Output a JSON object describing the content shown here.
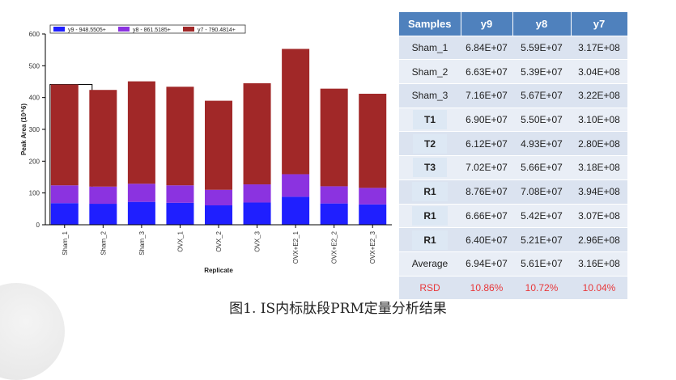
{
  "chart_data": {
    "type": "bar",
    "stacked": true,
    "categories": [
      "Sham_1",
      "Sham_2",
      "Sham_3",
      "OVX_1",
      "OVX_2",
      "OVX_3",
      "OVX+E2_1",
      "OVX+E2_2",
      "OVX+E2_3"
    ],
    "series": [
      {
        "name": "y9 - 948.5505+",
        "color": "#1f1fff",
        "values": [
          68,
          66,
          72,
          69,
          61,
          70,
          88,
          67,
          64
        ]
      },
      {
        "name": "y8 - 861.5185+",
        "color": "#8b33e0",
        "values": [
          56,
          54,
          57,
          55,
          49,
          57,
          71,
          54,
          52
        ]
      },
      {
        "name": "y7 - 790.4814+",
        "color": "#a12828",
        "values": [
          317,
          304,
          322,
          310,
          280,
          318,
          394,
          307,
          296
        ]
      }
    ],
    "xlabel": "Replicate",
    "ylabel": "Peak Area (10^6)",
    "yticks": [
      0,
      100,
      200,
      300,
      400,
      500,
      600
    ],
    "ylim": [
      0,
      600
    ],
    "legend_position": "top",
    "highlighted_category": "Sham_1"
  },
  "table": {
    "headers": [
      "Samples",
      "y9",
      "y8",
      "y7"
    ],
    "rows": [
      {
        "sample": "Sham_1",
        "y9": "6.84E+07",
        "y8": "5.59E+07",
        "y7": "3.17E+08",
        "boxed": false
      },
      {
        "sample": "Sham_2",
        "y9": "6.63E+07",
        "y8": "5.39E+07",
        "y7": "3.04E+08",
        "boxed": false
      },
      {
        "sample": "Sham_3",
        "y9": "7.16E+07",
        "y8": "5.67E+07",
        "y7": "3.22E+08",
        "boxed": false
      },
      {
        "sample": "T1",
        "y9": "6.90E+07",
        "y8": "5.50E+07",
        "y7": "3.10E+08",
        "boxed": true
      },
      {
        "sample": "T2",
        "y9": "6.12E+07",
        "y8": "4.93E+07",
        "y7": "2.80E+08",
        "boxed": true
      },
      {
        "sample": "T3",
        "y9": "7.02E+07",
        "y8": "5.66E+07",
        "y7": "3.18E+08",
        "boxed": true
      },
      {
        "sample": "R1",
        "y9": "8.76E+07",
        "y8": "7.08E+07",
        "y7": "3.94E+08",
        "boxed": true
      },
      {
        "sample": "R1",
        "y9": "6.66E+07",
        "y8": "5.42E+07",
        "y7": "3.07E+08",
        "boxed": true
      },
      {
        "sample": "R1",
        "y9": "6.40E+07",
        "y8": "5.21E+07",
        "y7": "2.96E+08",
        "boxed": true
      },
      {
        "sample": "Average",
        "y9": "6.94E+07",
        "y8": "5.61E+07",
        "y7": "3.16E+08",
        "boxed": false
      },
      {
        "sample": "RSD",
        "y9": "10.86%",
        "y8": "10.72%",
        "y7": "10.04%",
        "boxed": false,
        "rsd": true
      }
    ]
  },
  "caption": "图1. IS内标肽段PRM定量分析结果"
}
